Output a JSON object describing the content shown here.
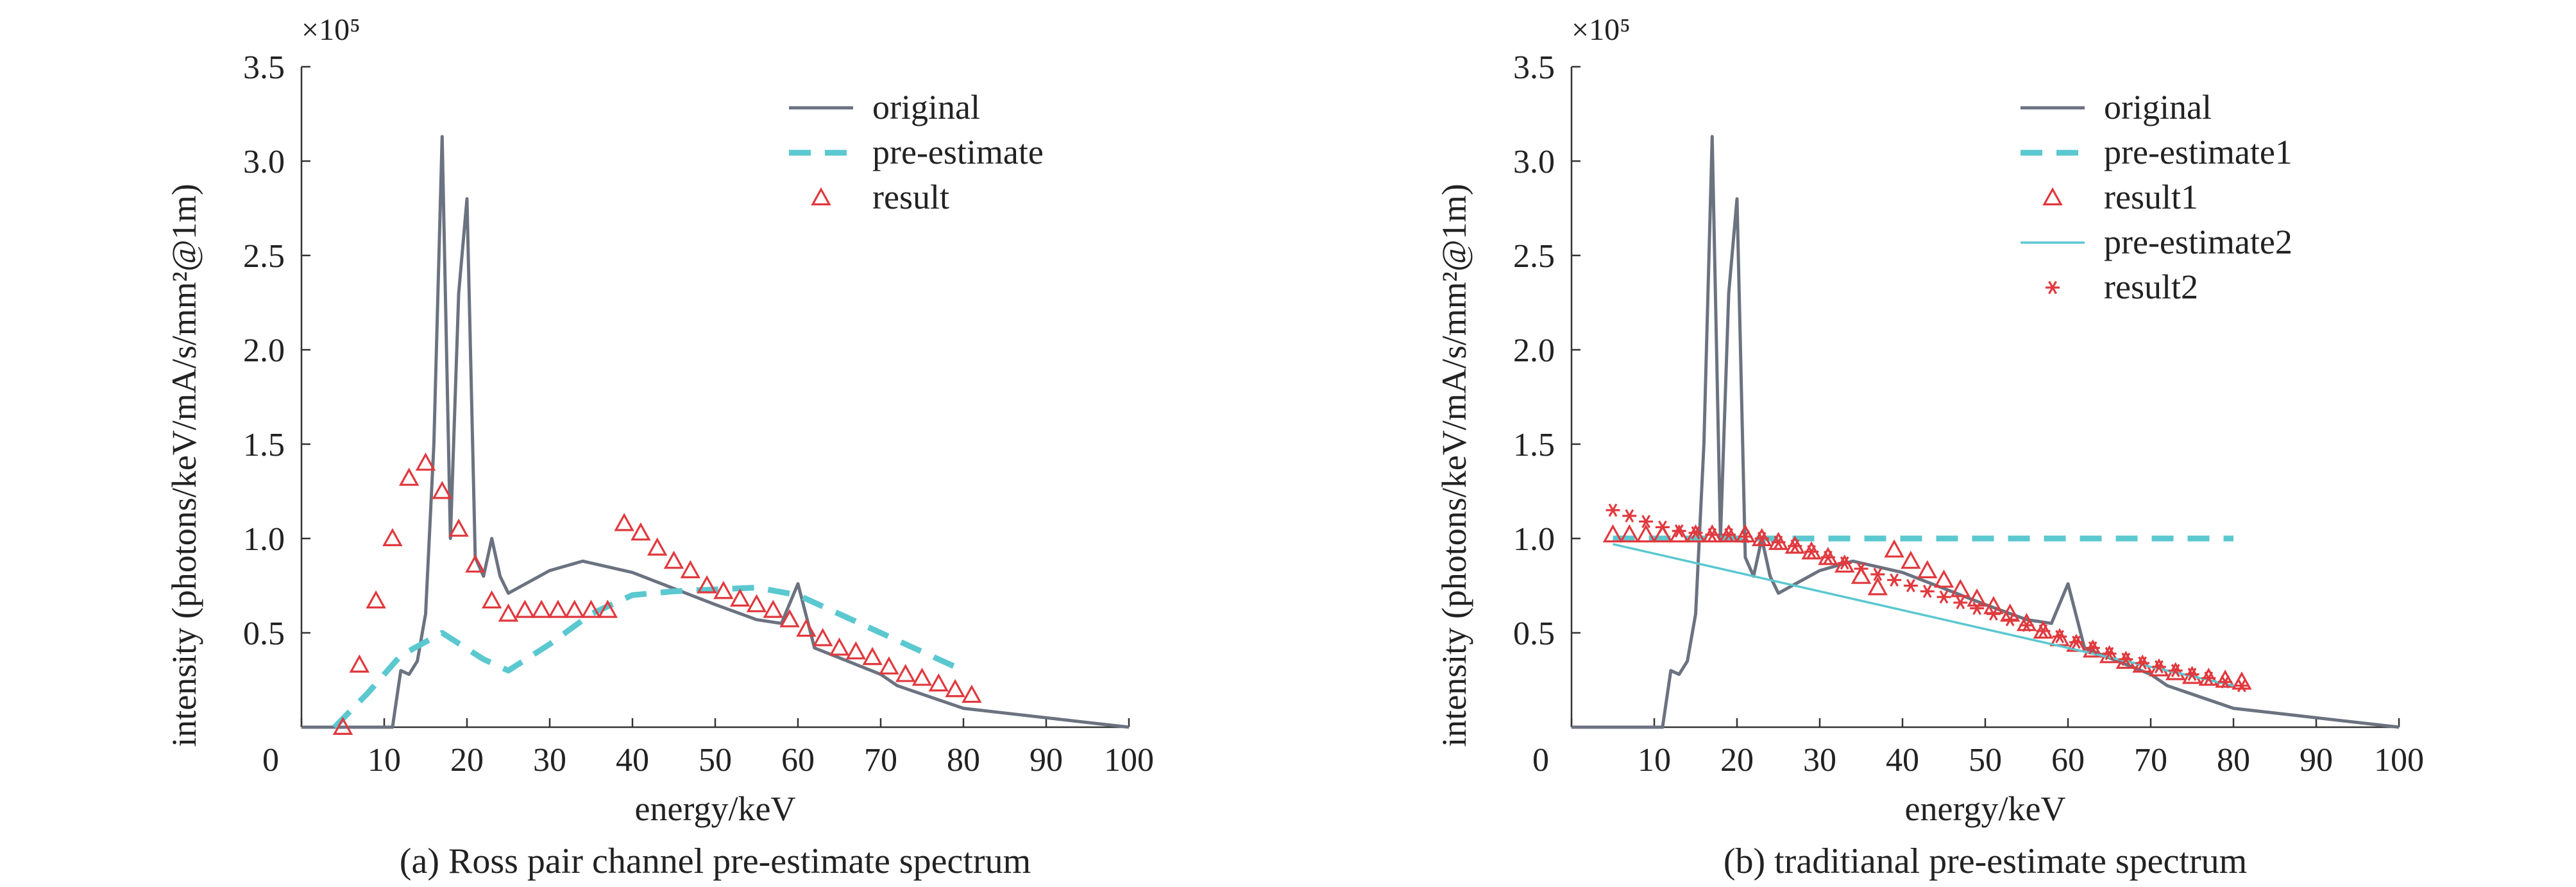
{
  "chart_data": [
    {
      "type": "line",
      "caption": "(a) Ross pair channel pre-estimate spectrum",
      "xlabel": "energy/keV",
      "ylabel": "intensity (photons/keV/mA/s/mm²@1m)",
      "y_multiplier": "×10⁵",
      "xlim": [
        0,
        100
      ],
      "ylim": [
        0,
        350000
      ],
      "xticks": [
        "0",
        "10",
        "20",
        "30",
        "40",
        "50",
        "60",
        "70",
        "80",
        "90",
        "100"
      ],
      "yticks": [
        "0.5",
        "1.0",
        "1.5",
        "2.0",
        "2.5",
        "3.0",
        "3.5"
      ],
      "legend_position": "top-right",
      "series": [
        {
          "name": "original",
          "style": "line",
          "color": "#6b7280",
          "x": [
            0,
            10,
            11,
            12,
            13,
            14,
            15,
            16,
            17,
            18,
            19,
            20,
            21,
            22,
            23,
            24,
            25,
            30,
            34,
            40,
            50,
            55,
            58,
            60,
            62,
            66,
            70,
            72,
            80,
            90,
            100
          ],
          "y": [
            0,
            0,
            0,
            30000,
            28000,
            35000,
            60000,
            150000,
            313000,
            100000,
            230000,
            280000,
            90000,
            80000,
            100000,
            80000,
            71000,
            83000,
            88000,
            82000,
            65000,
            57000,
            55000,
            76000,
            42000,
            35000,
            28000,
            22000,
            10000,
            5000,
            0
          ]
        },
        {
          "name": "pre-estimate",
          "style": "dashed",
          "color": "#5bc8d0",
          "x": [
            4,
            8,
            12,
            17,
            22,
            25,
            30,
            35,
            40,
            45,
            50,
            55,
            60,
            65,
            70,
            75,
            80
          ],
          "y": [
            0,
            18000,
            38000,
            50000,
            36000,
            30000,
            44000,
            60000,
            70000,
            72000,
            73000,
            74000,
            70000,
            60000,
            50000,
            40000,
            30000
          ]
        },
        {
          "name": "result",
          "style": "triangle",
          "color": "#e0393e",
          "x": [
            5,
            7,
            9,
            11,
            13,
            15,
            17,
            19,
            21,
            23,
            25,
            27,
            29,
            31,
            33,
            35,
            37,
            39,
            41,
            43,
            45,
            47,
            49,
            51,
            53,
            55,
            57,
            59,
            61,
            63,
            65,
            67,
            69,
            71,
            73,
            75,
            77,
            79,
            81
          ],
          "y": [
            0,
            33000,
            67000,
            100000,
            132000,
            140000,
            125000,
            105000,
            86000,
            67000,
            60000,
            62000,
            62000,
            62000,
            62000,
            62000,
            62000,
            108000,
            103000,
            95000,
            88000,
            83000,
            75000,
            72000,
            68000,
            65000,
            62000,
            57000,
            52000,
            47000,
            42000,
            40000,
            37000,
            32000,
            28000,
            26000,
            23000,
            20000,
            17000
          ]
        }
      ]
    },
    {
      "type": "line",
      "caption": "(b) traditianal pre-estimate spectrum",
      "xlabel": "energy/keV",
      "ylabel": "intensity (photons/keV/mA/s/mm²@1m)",
      "y_multiplier": "×10⁵",
      "xlim": [
        0,
        100
      ],
      "ylim": [
        0,
        350000
      ],
      "xticks": [
        "0",
        "10",
        "20",
        "30",
        "40",
        "50",
        "60",
        "70",
        "80",
        "90",
        "100"
      ],
      "yticks": [
        "0.5",
        "1.0",
        "1.5",
        "2.0",
        "2.5",
        "3.0",
        "3.5"
      ],
      "legend_position": "top-right",
      "series": [
        {
          "name": "original",
          "style": "line",
          "color": "#6b7280",
          "x": [
            0,
            10,
            11,
            12,
            13,
            14,
            15,
            16,
            17,
            18,
            19,
            20,
            21,
            22,
            23,
            24,
            25,
            30,
            34,
            40,
            50,
            55,
            58,
            60,
            62,
            66,
            70,
            72,
            80,
            90,
            100
          ],
          "y": [
            0,
            0,
            0,
            30000,
            28000,
            35000,
            60000,
            150000,
            313000,
            100000,
            230000,
            280000,
            90000,
            80000,
            100000,
            80000,
            71000,
            83000,
            88000,
            82000,
            65000,
            57000,
            55000,
            76000,
            42000,
            35000,
            28000,
            22000,
            10000,
            5000,
            0
          ]
        },
        {
          "name": "pre-estimate1",
          "style": "dashed",
          "color": "#5bc8d0",
          "x": [
            5,
            80
          ],
          "y": [
            100000,
            100000
          ]
        },
        {
          "name": "result1",
          "style": "triangle",
          "color": "#e0393e",
          "x": [
            5,
            7,
            9,
            11,
            13,
            15,
            17,
            19,
            21,
            23,
            25,
            27,
            29,
            31,
            33,
            35,
            37,
            39,
            41,
            43,
            45,
            47,
            49,
            51,
            53,
            55,
            57,
            59,
            61,
            63,
            65,
            67,
            69,
            71,
            73,
            75,
            77,
            79,
            81
          ],
          "y": [
            102000,
            102000,
            102000,
            102000,
            102000,
            102000,
            102000,
            102000,
            102000,
            100000,
            98000,
            96000,
            93000,
            90000,
            86000,
            80000,
            74000,
            94000,
            88000,
            83000,
            78000,
            73000,
            68000,
            64000,
            60000,
            55000,
            51000,
            47000,
            44000,
            41000,
            38000,
            35000,
            33000,
            31000,
            29000,
            27000,
            26000,
            25000,
            24000
          ]
        },
        {
          "name": "pre-estimate2",
          "style": "line",
          "color": "#5bc8d0",
          "x": [
            5,
            80
          ],
          "y": [
            97000,
            22000
          ]
        },
        {
          "name": "result2",
          "style": "asterisk",
          "color": "#e0393e",
          "x": [
            5,
            7,
            9,
            11,
            13,
            15,
            17,
            19,
            21,
            23,
            25,
            27,
            29,
            31,
            33,
            35,
            37,
            39,
            41,
            43,
            45,
            47,
            49,
            51,
            53,
            55,
            57,
            59,
            61,
            63,
            65,
            67,
            69,
            71,
            73,
            75,
            77,
            79,
            81
          ],
          "y": [
            115000,
            112000,
            109000,
            106000,
            104000,
            103000,
            102000,
            102000,
            101000,
            100000,
            98000,
            96000,
            93000,
            90000,
            87000,
            84000,
            81000,
            78000,
            75000,
            72000,
            69000,
            66000,
            63000,
            60000,
            57000,
            54000,
            51000,
            48000,
            45000,
            42000,
            39000,
            36000,
            34000,
            32000,
            30000,
            28000,
            26000,
            24000,
            22000
          ]
        }
      ]
    }
  ]
}
